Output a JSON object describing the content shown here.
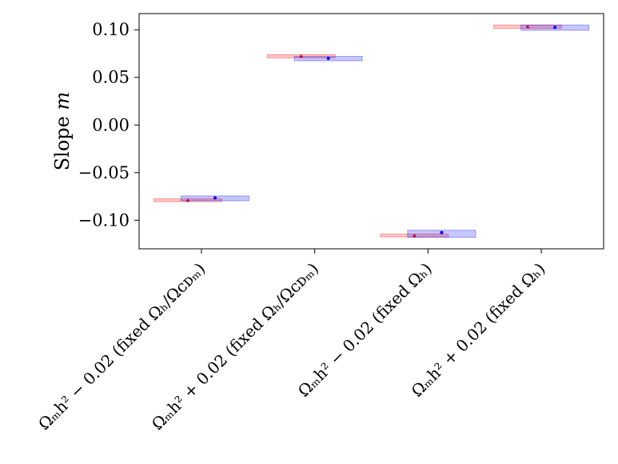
{
  "chart_data": {
    "type": "scatter",
    "title": "",
    "xlabel": "",
    "ylabel": "Slope m",
    "ylim": [
      -0.13,
      0.117
    ],
    "yticks": [
      0.1,
      0.05,
      0.0,
      -0.05,
      -0.1
    ],
    "ytick_labels": [
      "0.10",
      "0.05",
      "0.00",
      "−0.05",
      "−0.10"
    ],
    "grid": false,
    "legend": "none",
    "categories": [
      "Ωₘh² − 0.02 (fixed Ωₕ/Ωᴄᴅₘ)",
      "Ωₘh² + 0.02 (fixed Ωₕ/Ωᴄᴅₘ)",
      "Ωₘh² − 0.02 (fixed Ωₕ)",
      "Ωₘh² + 0.02 (fixed Ωₕ)"
    ],
    "series": [
      {
        "color": "#ff0000",
        "marker": "triangle",
        "points": [
          {
            "category": 0,
            "x_offset": -0.12,
            "y": -0.079,
            "box": [
              -0.0805,
              -0.0775
            ],
            "half_width": 0.3
          },
          {
            "category": 1,
            "x_offset": -0.12,
            "y": 0.0725,
            "box": [
              0.0705,
              0.074
            ],
            "half_width": 0.3
          },
          {
            "category": 2,
            "x_offset": -0.12,
            "y": -0.116,
            "box": [
              -0.1175,
              -0.1145
            ],
            "half_width": 0.3
          },
          {
            "category": 3,
            "x_offset": -0.12,
            "y": 0.1035,
            "box": [
              0.1015,
              0.105
            ],
            "half_width": 0.3
          }
        ]
      },
      {
        "color": "#0000ff",
        "marker": "circle",
        "points": [
          {
            "category": 0,
            "x_offset": 0.12,
            "y": -0.0765,
            "box": [
              -0.0795,
              -0.0745
            ],
            "half_width": 0.3
          },
          {
            "category": 1,
            "x_offset": 0.12,
            "y": 0.07,
            "box": [
              0.0675,
              0.072
            ],
            "half_width": 0.3
          },
          {
            "category": 2,
            "x_offset": 0.12,
            "y": -0.113,
            "box": [
              -0.118,
              -0.1105
            ],
            "half_width": 0.3
          },
          {
            "category": 3,
            "x_offset": 0.12,
            "y": 0.1025,
            "box": [
              0.0995,
              0.105
            ],
            "half_width": 0.3
          }
        ]
      }
    ]
  }
}
